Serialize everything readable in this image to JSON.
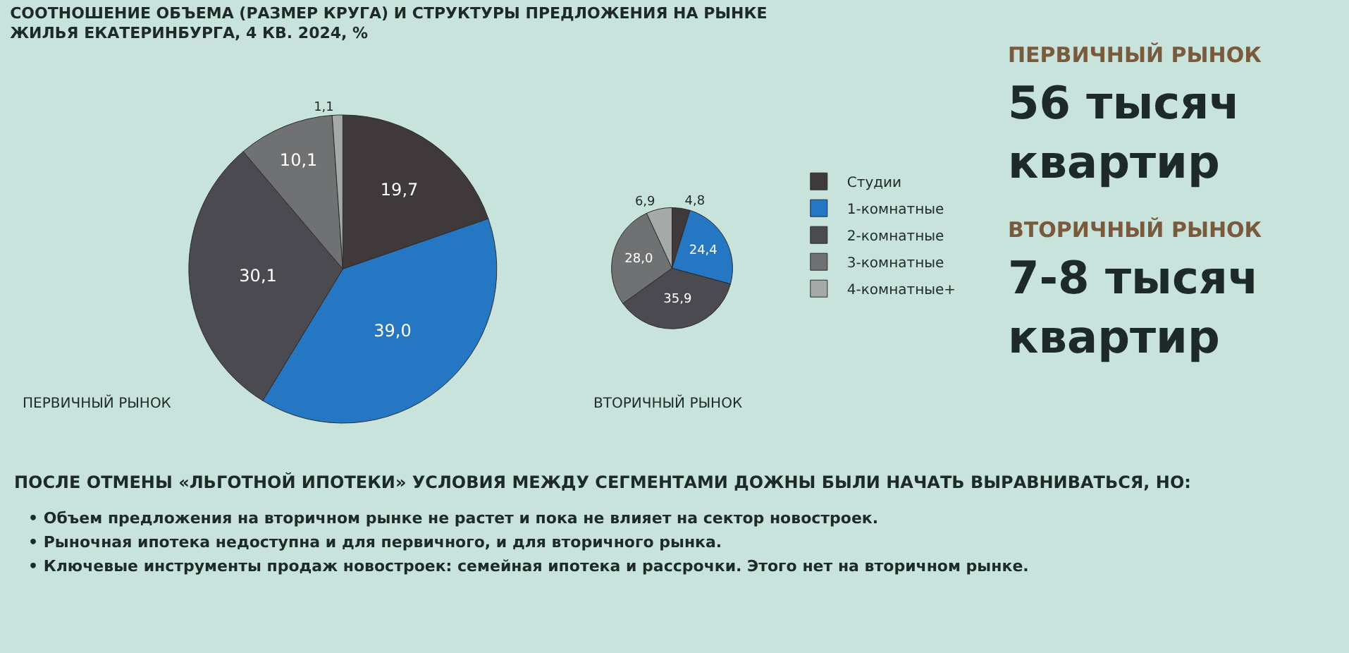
{
  "chart_data": [
    {
      "type": "pie",
      "title": "СООТНОШЕНИЕ ОБЪЕМА (РАЗМЕР КРУГА) И СТРУКТУРЫ ПРЕДЛОЖЕНИЯ НА РЫНКЕ ЖИЛЬЯ ЕКАТЕРИНБУРГА, 4 КВ. 2024, %",
      "categories": [
        "Студии",
        "1-комнатные",
        "2-комнатные",
        "3-комнатные",
        "4-комнатные+"
      ],
      "colors": [
        "#3f393b",
        "#2577c4",
        "#4b4a50",
        "#6f7173",
        "#a5aaa9"
      ],
      "legend": "right",
      "series": [
        {
          "name": "ПЕРВИЧНЫЙ РЫНОК",
          "values": [
            19.7,
            39.0,
            30.1,
            10.1,
            1.1
          ],
          "value_labels": [
            "19,7",
            "39,0",
            "30,1",
            "10,1",
            "1,1"
          ]
        },
        {
          "name": "ВТОРИЧНЫЙ РЫНОК",
          "values": [
            4.8,
            24.4,
            35.9,
            28.0,
            6.9
          ],
          "value_labels": [
            "4,8",
            "24,4",
            "35,9",
            "28,0",
            "6,9"
          ]
        }
      ]
    },
    {
      "type": "other",
      "annotations": [
        "ПЕРВИЧНЫЙ РЫНОК",
        "56 тысяч квартир",
        "ВТОРИЧНЫЙ РЫНОК",
        "7-8 тысяч квартир"
      ]
    },
    {
      "type": "other",
      "title": "ПОСЛЕ ОТМЕНЫ «ЛЬГОТНОЙ ИПОТЕКИ» УСЛОВИЯ МЕЖДУ СЕГМЕНТАМИ ДОЖНЫ БЫЛИ НАЧАТЬ ВЫРАВНИВАТЬСЯ, НО:",
      "annotations": [
        "• Объем предложения на вторичном рынке не растет и пока не влияет на сектор новостроек.",
        "• Рыночная ипотека недоступна и для первичного, и для вторичного рынка.",
        "• Ключевые инструменты продаж новостроек: семейная ипотека и рассрочки. Этого нет на вторичном рынке."
      ]
    }
  ]
}
